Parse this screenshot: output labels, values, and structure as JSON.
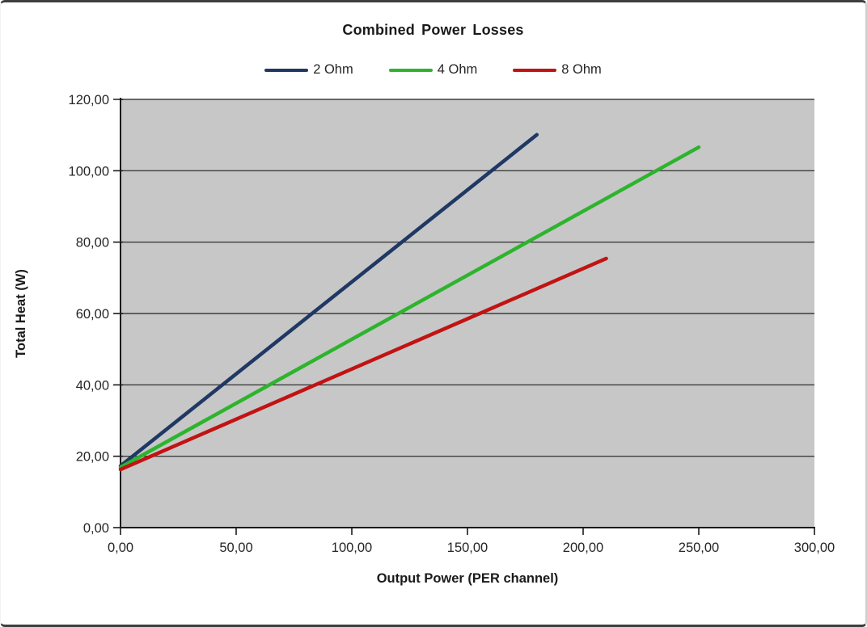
{
  "chart_data": {
    "type": "line",
    "title": "Combined Power Losses",
    "xlabel": "Output Power (PER channel)",
    "ylabel": "Total Heat (W)",
    "xlim": [
      0,
      300
    ],
    "ylim": [
      0,
      120
    ],
    "grid": "horizontal",
    "legend_position": "top-center",
    "x_ticks": [
      {
        "v": 0,
        "label": "0,00"
      },
      {
        "v": 50,
        "label": "50,00"
      },
      {
        "v": 100,
        "label": "100,00"
      },
      {
        "v": 150,
        "label": "150,00"
      },
      {
        "v": 200,
        "label": "200,00"
      },
      {
        "v": 250,
        "label": "250,00"
      },
      {
        "v": 300,
        "label": "300,00"
      }
    ],
    "y_ticks": [
      {
        "v": 0,
        "label": "0,00"
      },
      {
        "v": 20,
        "label": "20,00"
      },
      {
        "v": 40,
        "label": "40,00"
      },
      {
        "v": 60,
        "label": "60,00"
      },
      {
        "v": 80,
        "label": "80,00"
      },
      {
        "v": 100,
        "label": "100,00"
      },
      {
        "v": 120,
        "label": "120,00"
      }
    ],
    "series": [
      {
        "name": "2 Ohm",
        "color": "#1f3864",
        "points": [
          [
            0,
            17.3
          ],
          [
            180,
            110.1
          ]
        ]
      },
      {
        "name": "4 Ohm",
        "color": "#2db42d",
        "points": [
          [
            0,
            16.9
          ],
          [
            250,
            106.6
          ]
        ]
      },
      {
        "name": "8 Ohm",
        "color": "#c21313",
        "points": [
          [
            0,
            16.3
          ],
          [
            210,
            75.4
          ]
        ]
      }
    ],
    "colors": {
      "plot_bg": "#c7c7c7",
      "gridline": "#3d3d3d",
      "axis": "#1a1a1a",
      "tick_text": "#262626"
    }
  }
}
